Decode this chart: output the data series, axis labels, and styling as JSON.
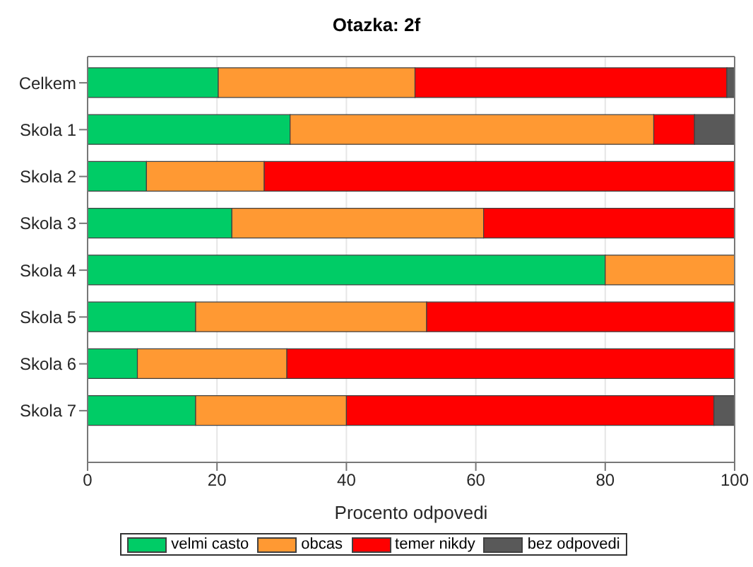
{
  "chart_data": {
    "type": "bar",
    "orientation": "horizontal",
    "stacked": true,
    "title": "Otazka: 2f",
    "xlabel": "Procento odpovedi",
    "categories": [
      "Celkem",
      "Skola 1",
      "Skola 2",
      "Skola 3",
      "Skola 4",
      "Skola 5",
      "Skola 6",
      "Skola 7"
    ],
    "series": [
      {
        "name": "velmi casto",
        "color": "#00cc66",
        "values": [
          20.2,
          31.3,
          9.1,
          22.3,
          80,
          16.7,
          7.7,
          16.7
        ]
      },
      {
        "name": "obcas",
        "color": "#ff9933",
        "values": [
          30.4,
          56.2,
          18.2,
          38.9,
          20,
          35.7,
          23.1,
          23.3
        ]
      },
      {
        "name": "temer nikdy",
        "color": "#ff0000",
        "values": [
          48.2,
          6.3,
          72.7,
          38.8,
          0,
          47.6,
          69.2,
          56.8
        ]
      },
      {
        "name": "bez odpovedi",
        "color": "#595959",
        "values": [
          1.2,
          6.2,
          0,
          0,
          0,
          0,
          0,
          3.2
        ]
      }
    ],
    "xlim": [
      0,
      100
    ],
    "xticks": [
      0,
      20,
      40,
      60,
      80,
      100
    ],
    "grid": "x",
    "legend": "bottom"
  }
}
